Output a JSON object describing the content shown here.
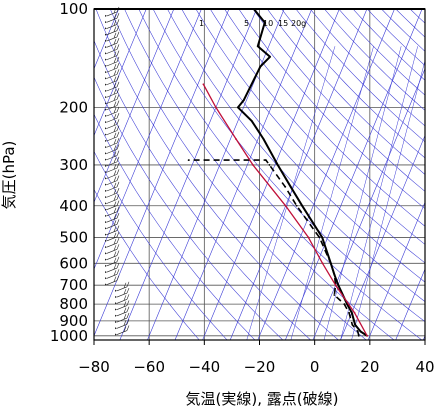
{
  "chart_data": {
    "type": "line",
    "diagram": "skew-T log-p",
    "xlabel": "気温(実線), 露点(破線)",
    "ylabel": "気圧(hPa)",
    "xlim": [
      -80,
      40
    ],
    "ylim": [
      1030,
      100
    ],
    "y_scale": "log",
    "x_ticks": [
      -80,
      -60,
      -40,
      -20,
      0,
      20,
      40
    ],
    "y_ticks": [
      100,
      200,
      300,
      400,
      500,
      600,
      700,
      800,
      900,
      1000
    ],
    "x_tick_labels": [
      "−80",
      "−60",
      "−40",
      "−20",
      "0",
      "20",
      "40"
    ],
    "y_tick_labels": [
      "100",
      "200",
      "300",
      "400",
      "500",
      "600",
      "700",
      "800",
      "900",
      "1000"
    ],
    "mixing_ratio_labels": [
      "1",
      "5",
      "10",
      "15",
      "20g"
    ],
    "grid": true,
    "colors": {
      "temperature": "#000000",
      "dewpoint": "#000000",
      "parcel": "#c0103a",
      "reference_lines": "#3b3bd6",
      "grid": "#555555"
    },
    "series": [
      {
        "style": "solid",
        "points": [
          {
            "p": 1000,
            "t": 19
          },
          {
            "p": 970,
            "t": 16
          },
          {
            "p": 925,
            "t": 13
          },
          {
            "p": 850,
            "t": 10
          },
          {
            "p": 800,
            "t": 7
          },
          {
            "p": 700,
            "t": 1
          },
          {
            "p": 650,
            "t": -2
          },
          {
            "p": 600,
            "t": -5
          },
          {
            "p": 500,
            "t": -12
          },
          {
            "p": 400,
            "t": -24
          },
          {
            "p": 350,
            "t": -31
          },
          {
            "p": 300,
            "t": -39
          },
          {
            "p": 250,
            "t": -48
          },
          {
            "p": 220,
            "t": -55
          },
          {
            "p": 200,
            "t": -62
          },
          {
            "p": 190,
            "t": -61
          },
          {
            "p": 150,
            "t": -60
          },
          {
            "p": 140,
            "t": -58
          },
          {
            "p": 130,
            "t": -64
          },
          {
            "p": 110,
            "t": -65
          },
          {
            "p": 100,
            "t": -71
          }
        ]
      },
      {
        "style": "dashed",
        "points": [
          {
            "p": 1000,
            "t": 16
          },
          {
            "p": 970,
            "t": 15
          },
          {
            "p": 925,
            "t": 12
          },
          {
            "p": 850,
            "t": 9
          },
          {
            "p": 800,
            "t": 6
          },
          {
            "p": 750,
            "t": 1
          },
          {
            "p": 700,
            "t": 0
          },
          {
            "p": 650,
            "t": -2
          },
          {
            "p": 600,
            "t": -5
          },
          {
            "p": 500,
            "t": -13
          },
          {
            "p": 400,
            "t": -26
          },
          {
            "p": 350,
            "t": -33
          },
          {
            "p": 300,
            "t": -42
          },
          {
            "p": 290,
            "t": -44
          },
          {
            "p": 290,
            "t": -72
          }
        ]
      },
      {
        "style": "solid-thin",
        "points": [
          {
            "p": 1000,
            "t": 19
          },
          {
            "p": 850,
            "t": 11
          },
          {
            "p": 700,
            "t": 0
          },
          {
            "p": 600,
            "t": -8
          },
          {
            "p": 500,
            "t": -17
          },
          {
            "p": 400,
            "t": -30
          },
          {
            "p": 300,
            "t": -48
          },
          {
            "p": 250,
            "t": -58
          },
          {
            "p": 200,
            "t": -70
          },
          {
            "p": 170,
            "t": -78
          }
        ]
      }
    ]
  }
}
